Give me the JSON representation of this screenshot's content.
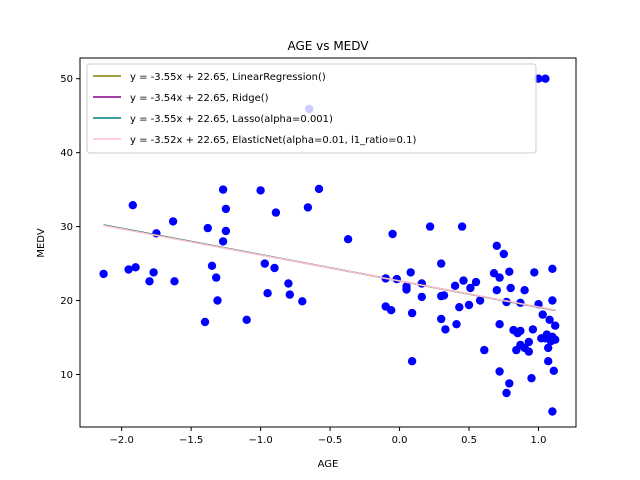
{
  "chart_data": {
    "type": "scatter",
    "title": "AGE vs MEDV",
    "xlabel": "AGE",
    "ylabel": "MEDV",
    "xlim": [
      -2.3,
      1.27
    ],
    "ylim": [
      2.9,
      52.8
    ],
    "xticks": [
      -2.0,
      -1.5,
      -1.0,
      -0.5,
      0.0,
      0.5,
      1.0
    ],
    "xtick_labels": [
      "−2.0",
      "−1.5",
      "−1.0",
      "−0.5",
      "0.0",
      "0.5",
      "1.0"
    ],
    "yticks": [
      10,
      20,
      30,
      40,
      50
    ],
    "ytick_labels": [
      "10",
      "20",
      "30",
      "40",
      "50"
    ],
    "grid": false,
    "legend_position": "top-left",
    "scatter_color": "#0000ff",
    "points": [
      [
        -2.13,
        23.6
      ],
      [
        -1.95,
        24.2
      ],
      [
        -1.9,
        24.5
      ],
      [
        -1.92,
        32.9
      ],
      [
        -1.8,
        22.6
      ],
      [
        -1.77,
        23.8
      ],
      [
        -1.75,
        29.1
      ],
      [
        -1.63,
        30.7
      ],
      [
        -1.62,
        22.6
      ],
      [
        -1.4,
        17.1
      ],
      [
        -1.38,
        29.8
      ],
      [
        -1.35,
        24.7
      ],
      [
        -1.32,
        23.1
      ],
      [
        -1.31,
        20.0
      ],
      [
        -1.27,
        28.0
      ],
      [
        -1.27,
        35.0
      ],
      [
        -1.25,
        29.4
      ],
      [
        -1.25,
        32.4
      ],
      [
        -1.1,
        17.4
      ],
      [
        -1.0,
        34.9
      ],
      [
        -0.97,
        25.0
      ],
      [
        -0.95,
        21.0
      ],
      [
        -0.9,
        24.4
      ],
      [
        -0.89,
        31.9
      ],
      [
        -0.8,
        22.3
      ],
      [
        -0.79,
        20.8
      ],
      [
        -0.7,
        19.9
      ],
      [
        -0.66,
        32.6
      ],
      [
        -0.65,
        45.9
      ],
      [
        -0.58,
        35.1
      ],
      [
        -0.37,
        28.3
      ],
      [
        -0.1,
        23.0
      ],
      [
        -0.1,
        19.2
      ],
      [
        -0.06,
        18.7
      ],
      [
        -0.05,
        29.0
      ],
      [
        -0.02,
        22.9
      ],
      [
        0.05,
        21.5
      ],
      [
        0.05,
        21.9
      ],
      [
        0.08,
        23.8
      ],
      [
        0.09,
        18.3
      ],
      [
        0.09,
        11.8
      ],
      [
        0.16,
        22.3
      ],
      [
        0.16,
        20.5
      ],
      [
        0.22,
        30.0
      ],
      [
        0.3,
        25.0
      ],
      [
        0.3,
        20.6
      ],
      [
        0.3,
        17.5
      ],
      [
        0.32,
        20.7
      ],
      [
        0.33,
        16.1
      ],
      [
        0.4,
        22.0
      ],
      [
        0.41,
        16.8
      ],
      [
        0.43,
        19.1
      ],
      [
        0.45,
        30.0
      ],
      [
        0.46,
        22.7
      ],
      [
        0.5,
        19.4
      ],
      [
        0.51,
        21.7
      ],
      [
        0.55,
        22.5
      ],
      [
        0.58,
        20.0
      ],
      [
        0.61,
        13.3
      ],
      [
        0.68,
        23.7
      ],
      [
        0.7,
        21.4
      ],
      [
        0.7,
        27.4
      ],
      [
        0.72,
        10.4
      ],
      [
        0.72,
        16.8
      ],
      [
        0.72,
        23.1
      ],
      [
        0.75,
        26.3
      ],
      [
        0.77,
        19.8
      ],
      [
        0.77,
        7.5
      ],
      [
        0.79,
        8.8
      ],
      [
        0.79,
        23.9
      ],
      [
        0.8,
        21.7
      ],
      [
        0.82,
        16.0
      ],
      [
        0.84,
        13.3
      ],
      [
        0.85,
        15.6
      ],
      [
        0.87,
        14.0
      ],
      [
        0.87,
        19.7
      ],
      [
        0.87,
        15.9
      ],
      [
        0.9,
        21.4
      ],
      [
        0.9,
        13.6
      ],
      [
        0.93,
        13.1
      ],
      [
        0.93,
        14.4
      ],
      [
        0.95,
        9.5
      ],
      [
        0.96,
        16.1
      ],
      [
        0.97,
        23.8
      ],
      [
        1.0,
        19.5
      ],
      [
        1.0,
        50.0
      ],
      [
        1.02,
        14.9
      ],
      [
        1.03,
        18.1
      ],
      [
        1.05,
        50.0
      ],
      [
        1.05,
        14.9
      ],
      [
        1.06,
        15.4
      ],
      [
        1.07,
        11.8
      ],
      [
        1.07,
        13.6
      ],
      [
        1.08,
        17.4
      ],
      [
        1.09,
        14.5
      ],
      [
        1.1,
        15.1
      ],
      [
        1.1,
        24.3
      ],
      [
        1.1,
        20.0
      ],
      [
        1.11,
        10.5
      ],
      [
        1.12,
        16.6
      ],
      [
        1.12,
        14.7
      ],
      [
        1.1,
        5.0
      ]
    ],
    "series": [
      {
        "name": "y = -3.55x + 22.65, LinearRegression()",
        "slope": -3.55,
        "intercept": 22.65,
        "color": "#808000"
      },
      {
        "name": "y = -3.54x + 22.65, Ridge()",
        "slope": -3.54,
        "intercept": 22.65,
        "color": "#800080"
      },
      {
        "name": "y = -3.55x + 22.65, Lasso(alpha=0.001)",
        "slope": -3.55,
        "intercept": 22.65,
        "color": "#008080"
      },
      {
        "name": "y = -3.52x + 22.65, ElasticNet(alpha=0.01, l1_ratio=0.1)",
        "slope": -3.52,
        "intercept": 22.65,
        "color": "#ffc0cb"
      }
    ],
    "line_x_range": [
      -2.13,
      1.12
    ]
  }
}
